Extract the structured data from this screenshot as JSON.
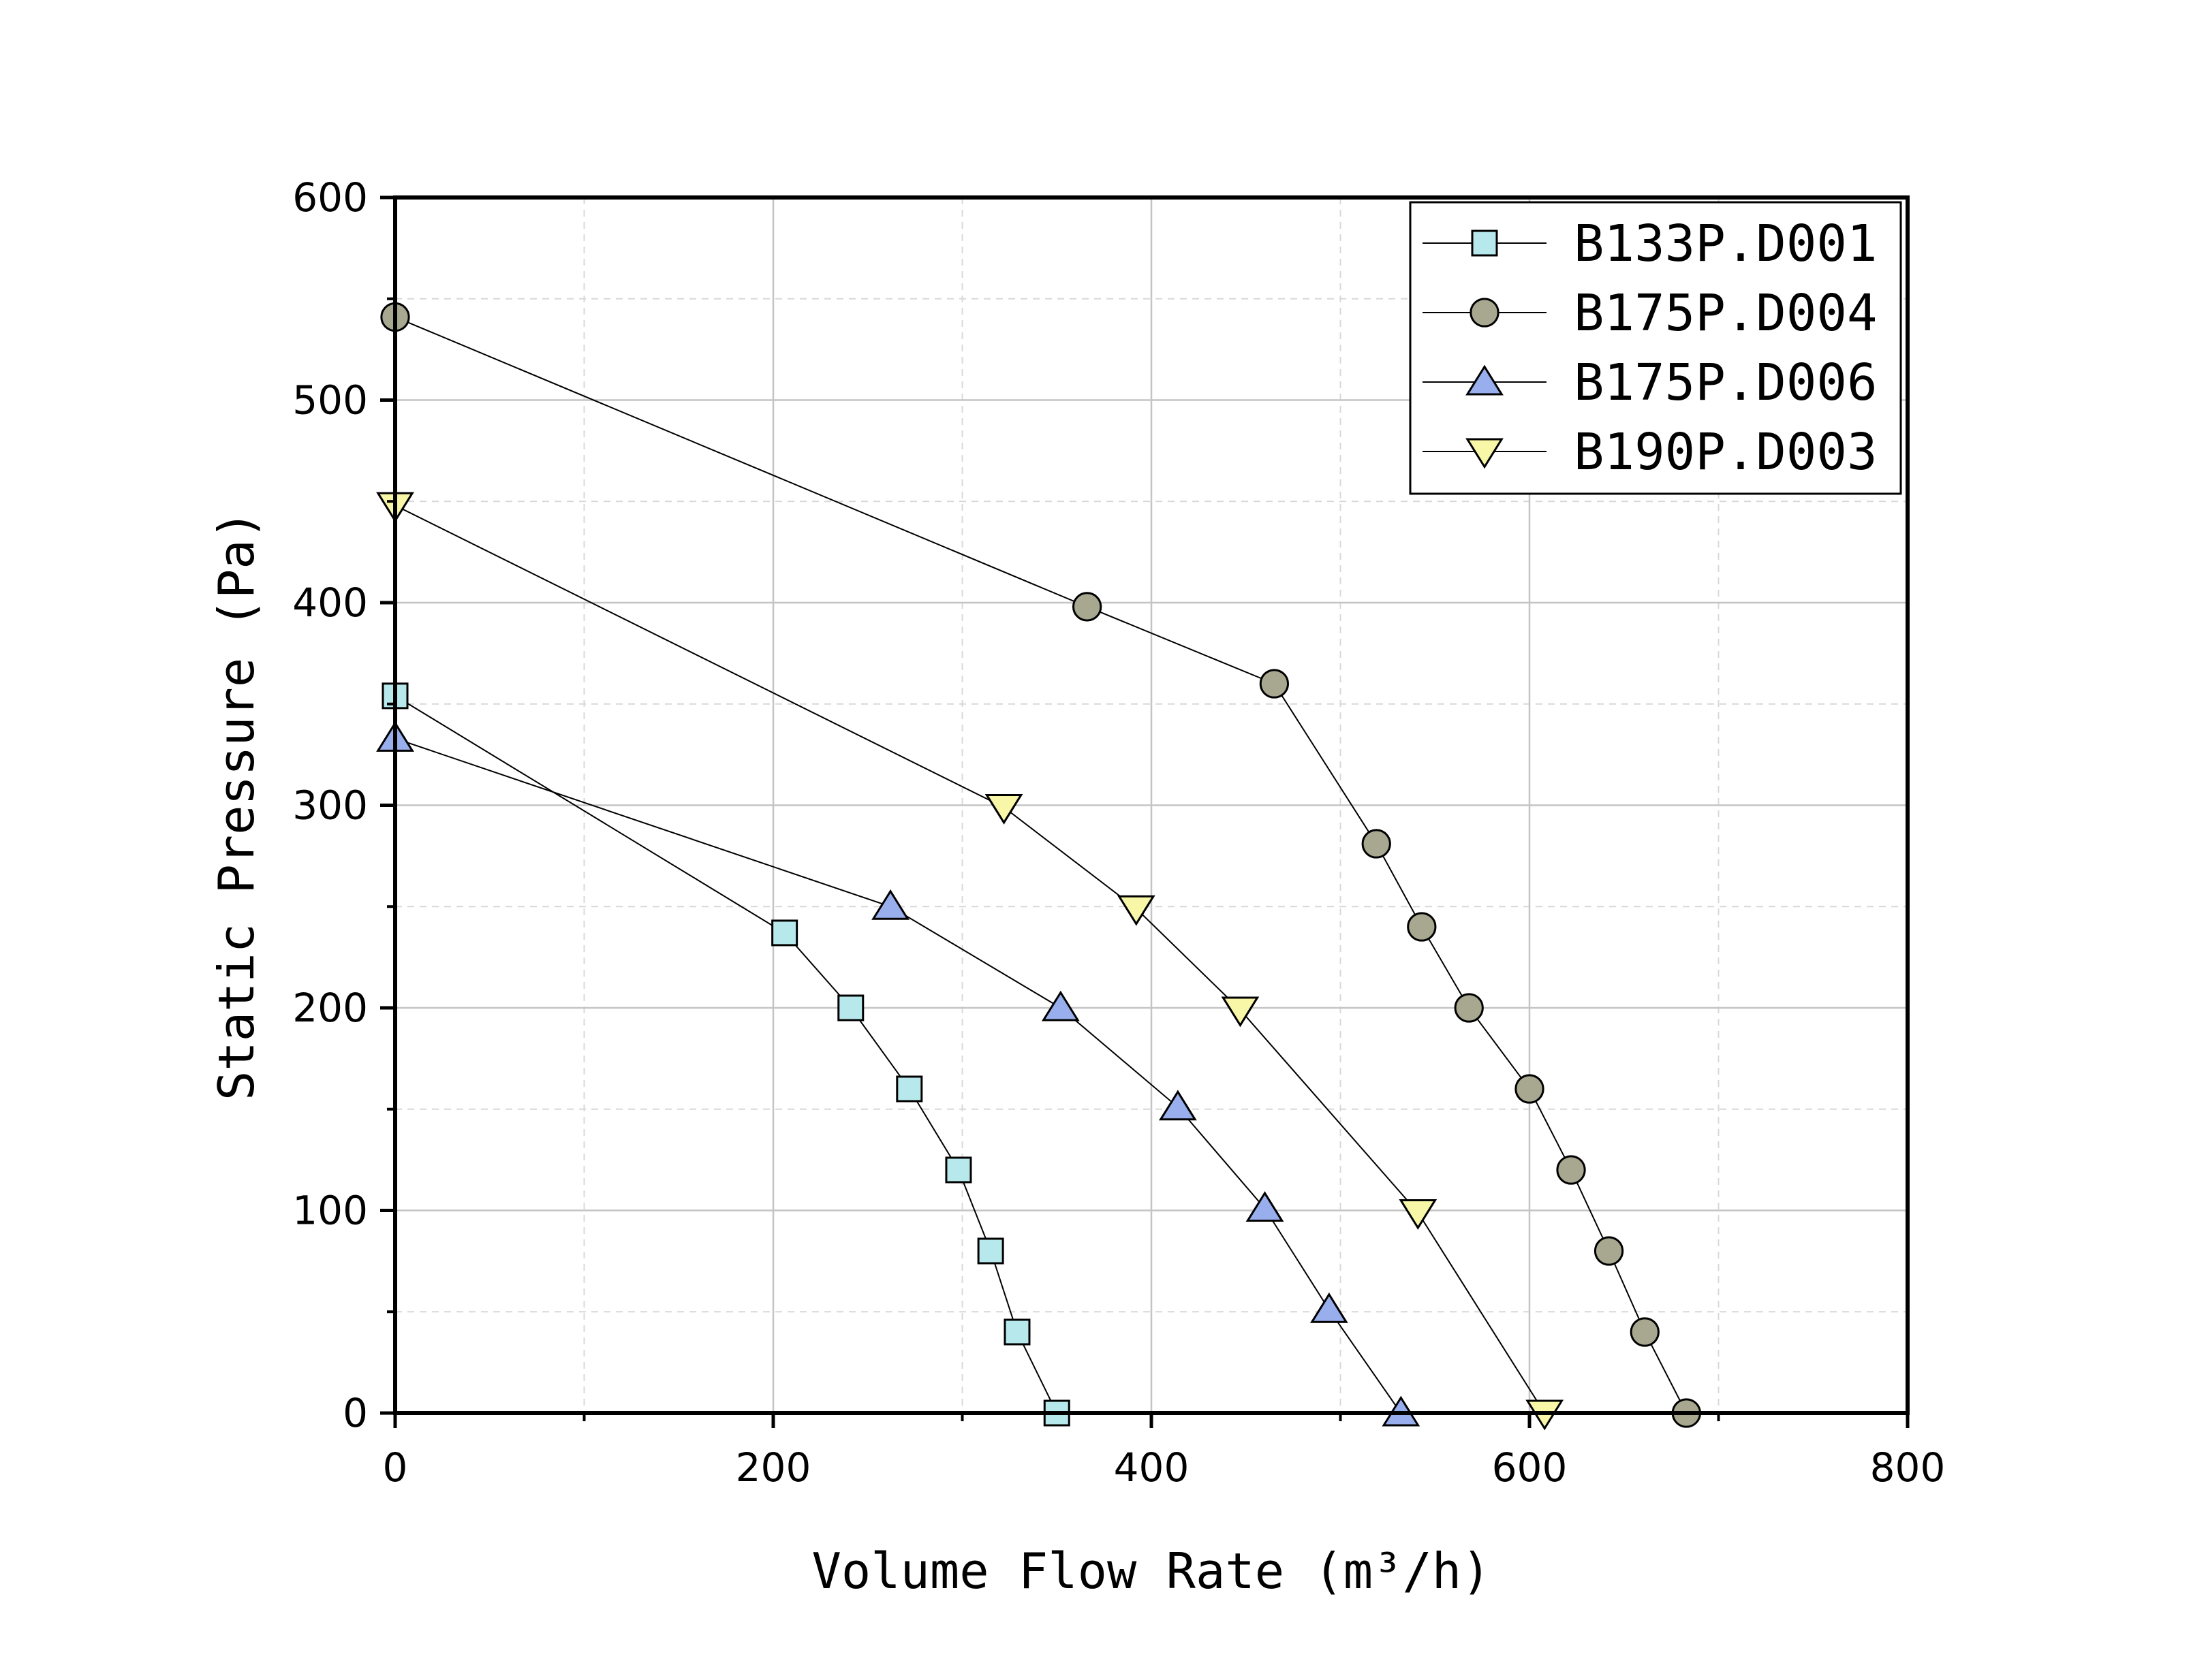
{
  "chart_data": {
    "type": "line",
    "xlabel": "Volume Flow Rate (m³/h)",
    "ylabel": "Static Pressure (Pa)",
    "xlim": [
      0,
      800
    ],
    "ylim": [
      0,
      600
    ],
    "x_ticks": [
      "0",
      "200",
      "400",
      "600",
      "800"
    ],
    "y_ticks": [
      "0",
      "100",
      "200",
      "300",
      "400",
      "500",
      "600"
    ],
    "grid": true,
    "legend_position": "top-right",
    "series": [
      {
        "name": "B133P.D001",
        "marker": "square",
        "color": "#b7e8ec",
        "points": [
          [
            0,
            354
          ],
          [
            206,
            237
          ],
          [
            241,
            200
          ],
          [
            272,
            160
          ],
          [
            298,
            120
          ],
          [
            315,
            80
          ],
          [
            329,
            40
          ],
          [
            350,
            0
          ]
        ]
      },
      {
        "name": "B175P.D004",
        "marker": "circle",
        "color": "#a8a890",
        "points": [
          [
            0,
            541
          ],
          [
            366,
            398
          ],
          [
            465,
            360
          ],
          [
            519,
            281
          ],
          [
            543,
            240
          ],
          [
            568,
            200
          ],
          [
            600,
            160
          ],
          [
            622,
            120
          ],
          [
            642,
            80
          ],
          [
            661,
            40
          ],
          [
            683,
            0
          ]
        ]
      },
      {
        "name": "B175P.D006",
        "marker": "triangle-up",
        "color": "#99aeec",
        "points": [
          [
            0,
            333
          ],
          [
            262,
            250
          ],
          [
            352,
            200
          ],
          [
            414,
            151
          ],
          [
            460,
            101
          ],
          [
            494,
            51
          ],
          [
            532,
            0
          ]
        ]
      },
      {
        "name": "B190P.D003",
        "marker": "triangle-down",
        "color": "#f8f7a8",
        "points": [
          [
            0,
            448
          ],
          [
            322,
            299
          ],
          [
            392,
            249
          ],
          [
            447,
            199
          ],
          [
            541,
            99
          ],
          [
            608,
            0
          ]
        ]
      }
    ]
  }
}
